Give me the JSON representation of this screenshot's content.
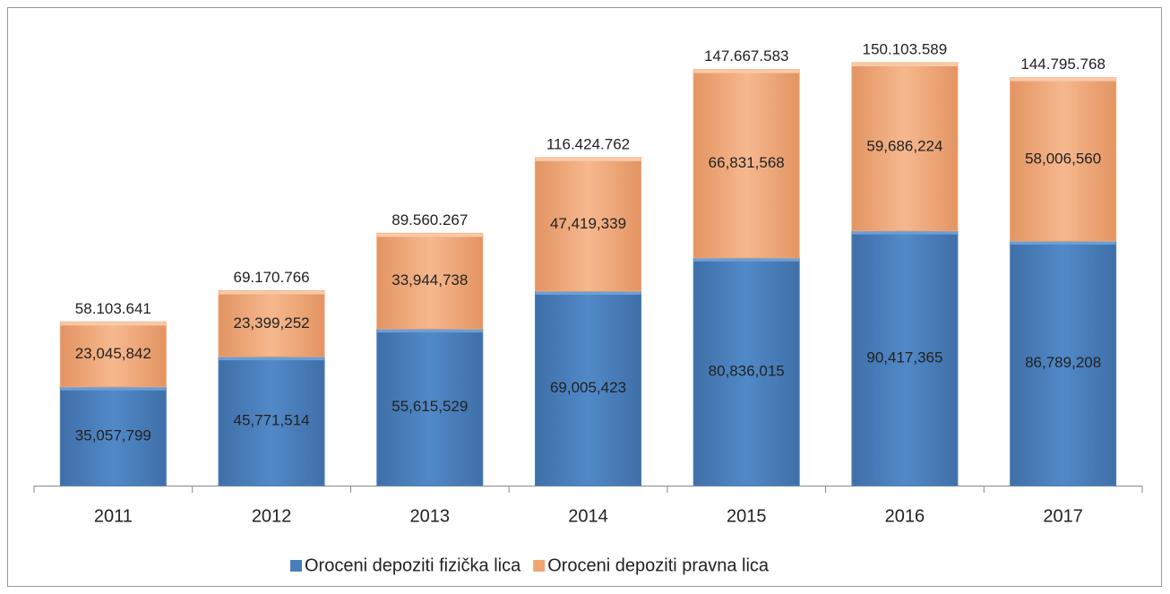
{
  "chart_data": {
    "type": "stacked_bar",
    "categories": [
      "2011",
      "2012",
      "2013",
      "2014",
      "2015",
      "2016",
      "2017"
    ],
    "series": [
      {
        "name": "Oroceni depoziti fizička lica",
        "color": "#4a7ebb",
        "values": [
          35057799,
          45771514,
          55615529,
          69005423,
          80836015,
          90417365,
          86789208
        ],
        "value_labels": [
          "35,057,799",
          "45,771,514",
          "55,615,529",
          "69,005,423",
          "80,836,015",
          "90,417,365",
          "86,789,208"
        ]
      },
      {
        "name": "Oroceni depoziti pravna lica",
        "color": "#f0a472",
        "values": [
          23045842,
          23399252,
          33944738,
          47419339,
          66831568,
          59686224,
          58006560
        ],
        "value_labels": [
          "23,045,842",
          "23,399,252",
          "33,944,738",
          "47,419,339",
          "66,831,568",
          "59,686,224",
          "58,006,560"
        ]
      }
    ],
    "totals": [
      58103641,
      69170766,
      89560267,
      116424762,
      147667583,
      150103589,
      144795768
    ],
    "total_labels": [
      "58.103.641",
      "69.170.766",
      "89.560.267",
      "116.424.762",
      "147.667.583",
      "150.103.589",
      "144.795.768"
    ],
    "legend": "bottom"
  }
}
